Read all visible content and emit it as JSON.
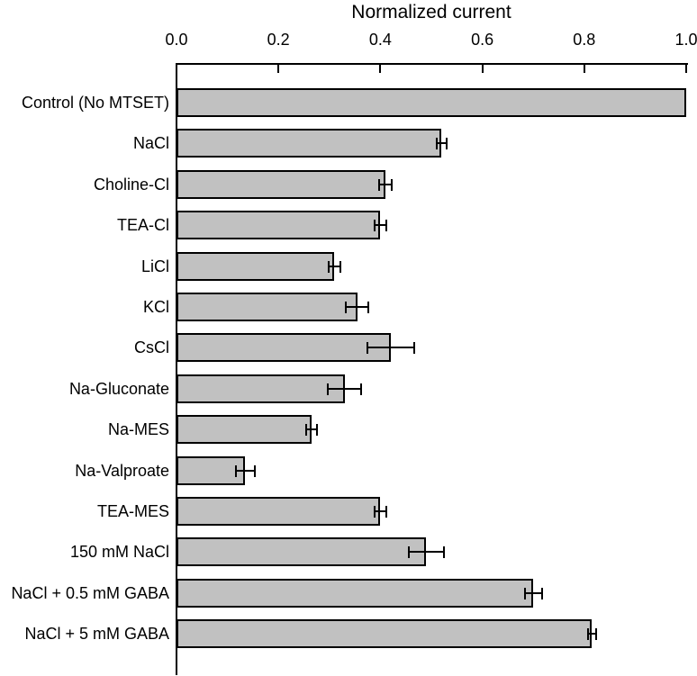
{
  "chart_data": {
    "type": "bar",
    "orientation": "horizontal",
    "title": "Normalized current",
    "xlabel": "Normalized current",
    "ylabel": "",
    "xlim": [
      0.0,
      1.0
    ],
    "xticks": [
      "0.0",
      "0.2",
      "0.4",
      "0.6",
      "0.8",
      "1.0"
    ],
    "grid": false,
    "axis_position": "top",
    "bar_fill_color": "#c1c1c1",
    "bar_border_color": "#000000",
    "error_bar_color": "#000000",
    "categories": [
      "Control (No MTSET)",
      "NaCl",
      "Choline-Cl",
      "TEA-Cl",
      "LiCl",
      "KCl",
      "CsCl",
      "Na-Gluconate",
      "Na-MES",
      "Na-Valproate",
      "TEA-MES",
      "150 mM NaCl",
      "NaCl + 0.5 mM GABA",
      "NaCl + 5 mM GABA"
    ],
    "values": [
      1.0,
      0.52,
      0.41,
      0.4,
      0.31,
      0.355,
      0.42,
      0.33,
      0.265,
      0.135,
      0.4,
      0.49,
      0.7,
      0.815
    ],
    "errors": [
      0,
      0.01,
      0.012,
      0.011,
      0.011,
      0.022,
      0.046,
      0.033,
      0.011,
      0.018,
      0.011,
      0.034,
      0.017,
      0.008
    ]
  }
}
